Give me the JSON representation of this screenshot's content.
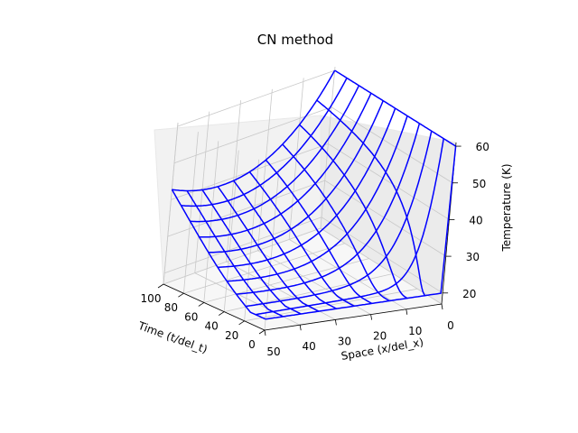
{
  "chart_data": {
    "type": "wireframe-3d",
    "title": "CN method",
    "xlabel": "Time (t/del_t)",
    "ylabel": "Space (x/del_x)",
    "zlabel": "Temperature (K)",
    "x_ticks": [
      "100",
      "80",
      "60",
      "40",
      "20",
      "0"
    ],
    "y_ticks": [
      "50",
      "40",
      "30",
      "20",
      "10",
      "0"
    ],
    "z_ticks": [
      "20",
      "30",
      "40",
      "50",
      "60"
    ],
    "xlim": [
      0,
      100
    ],
    "ylim": [
      0,
      50
    ],
    "zlim": [
      17,
      61
    ],
    "grid": true,
    "line_color": "#0000ff",
    "time_lines": [
      0,
      10,
      20,
      30,
      40,
      50,
      60,
      70,
      80,
      90,
      100
    ],
    "space_lines": [
      0,
      5,
      10,
      15,
      20,
      25,
      30,
      35,
      40,
      45,
      50
    ],
    "boundary_temperature": {
      "space_0": 60,
      "space_50": 20
    },
    "initial_temperature": 20,
    "equilibrium_temperature_at_space_50": 35
  }
}
